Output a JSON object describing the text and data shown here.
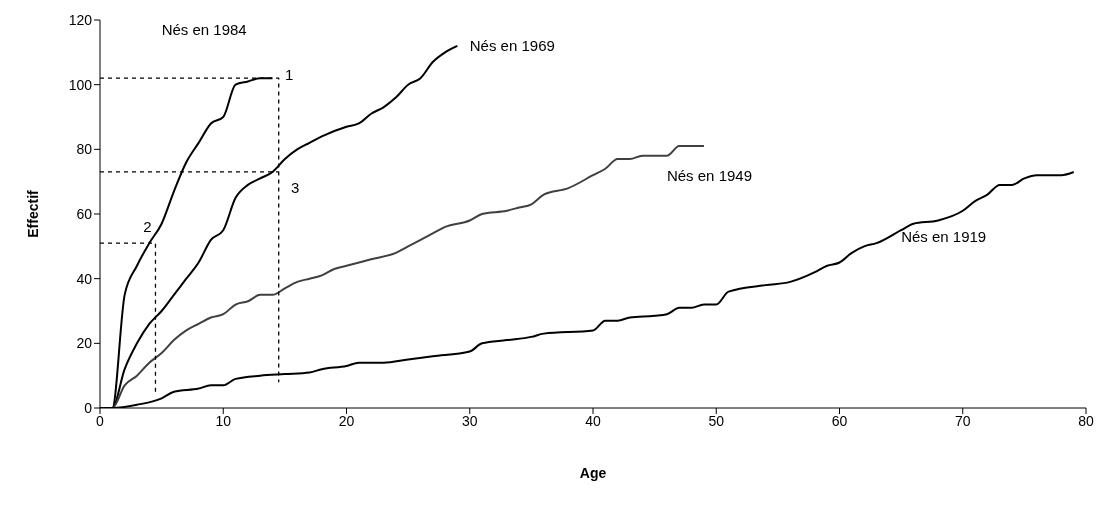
{
  "chart_data": {
    "type": "line",
    "xlabel": "Age",
    "ylabel": "Effectif",
    "xlim": [
      0,
      80
    ],
    "xticks": [
      0,
      10,
      20,
      30,
      40,
      50,
      60,
      70,
      80
    ],
    "ylim": [
      0,
      120
    ],
    "yticks": [
      0,
      20,
      40,
      60,
      80,
      100,
      120
    ],
    "grid": false,
    "marker": "none",
    "line_style": "solid",
    "series": [
      {
        "color": "#000000",
        "x": [
          0,
          1,
          2,
          3,
          4,
          5,
          6,
          7,
          8,
          9,
          10,
          11,
          12,
          13,
          14
        ],
        "values": [
          0,
          0,
          35,
          44,
          51,
          57,
          67,
          76,
          82,
          88,
          90,
          100,
          101,
          102,
          102
        ]
      },
      {
        "color": "#000000",
        "x": [
          0,
          1,
          2,
          3,
          4,
          5,
          6,
          7,
          8,
          9,
          10,
          11,
          12,
          13,
          14,
          15,
          16,
          17,
          18,
          20,
          21,
          22,
          23,
          24,
          25,
          26,
          27,
          28,
          29
        ],
        "values": [
          0,
          0,
          12,
          20,
          26,
          30,
          35,
          40,
          45,
          52,
          55,
          65,
          69,
          71,
          73,
          77,
          80,
          82,
          84,
          87,
          88,
          91,
          93,
          96,
          100,
          102,
          107,
          110,
          112
        ]
      },
      {
        "color": "#404040",
        "x": [
          0,
          1,
          2,
          3,
          4,
          5,
          6,
          7,
          8,
          9,
          10,
          11,
          12,
          13,
          14,
          15,
          16,
          17,
          18,
          19,
          20,
          22,
          24,
          25,
          27,
          28,
          30,
          31,
          33,
          34,
          35,
          36,
          38,
          40,
          41,
          42,
          43,
          44,
          46,
          47,
          48,
          49
        ],
        "values": [
          0,
          0,
          7,
          10,
          14,
          17,
          21,
          24,
          26,
          28,
          29,
          32,
          33,
          35,
          35,
          37,
          39,
          40,
          41,
          43,
          44,
          46,
          48,
          50,
          54,
          56,
          58,
          60,
          61,
          62,
          63,
          66,
          68,
          72,
          74,
          77,
          77,
          78,
          78,
          81,
          81,
          81
        ]
      },
      {
        "color": "#000000",
        "x": [
          0,
          1,
          3,
          5,
          6,
          8,
          9,
          10,
          11,
          13,
          15,
          17,
          18,
          20,
          21,
          23,
          25,
          27,
          30,
          31,
          33,
          35,
          36,
          40,
          41,
          42,
          43,
          45,
          46,
          47,
          48,
          49,
          50,
          51,
          54,
          56,
          58,
          59,
          60,
          61,
          62,
          63,
          65,
          66,
          68,
          70,
          71,
          72,
          73,
          74,
          75,
          76,
          78,
          79
        ],
        "values": [
          0,
          0,
          1,
          3,
          5,
          6,
          7,
          7,
          9,
          10,
          10.5,
          11,
          12,
          13,
          14,
          14,
          15,
          16,
          17.5,
          20,
          21,
          22,
          23,
          24,
          27,
          27,
          28,
          28.5,
          29,
          31,
          31,
          32,
          32,
          36,
          38,
          39,
          42,
          44,
          45,
          48,
          50,
          51,
          55,
          57,
          58,
          61,
          64,
          66,
          69,
          69,
          71,
          72,
          72,
          73
        ]
      },
      {
        "color": "#000000",
        "line_style": "dashed",
        "x": [
          0,
          14.5,
          14.5
        ],
        "values": [
          102,
          102,
          8
        ]
      },
      {
        "color": "#000000",
        "line_style": "dashed",
        "x": [
          0,
          14.5
        ],
        "values": [
          73,
          73
        ]
      },
      {
        "color": "#000000",
        "line_style": "dashed",
        "x": [
          0,
          4.5,
          4.5
        ],
        "values": [
          51,
          51,
          5
        ]
      }
    ],
    "annotations": [
      "Nés en 1984",
      "Nés en 1969",
      "Nés en 1949",
      "Nés en 1919",
      "1",
      "2",
      "3"
    ]
  }
}
